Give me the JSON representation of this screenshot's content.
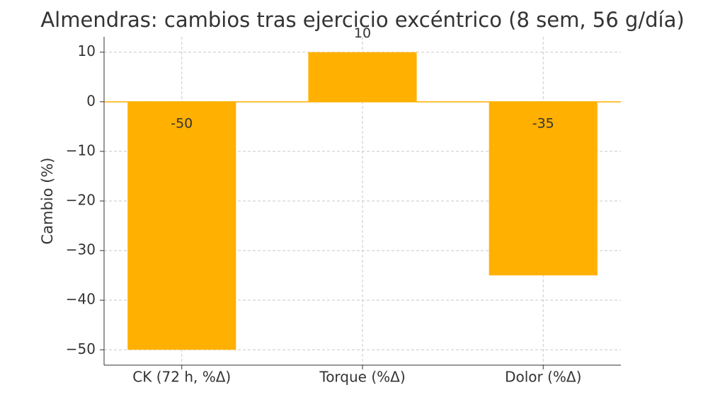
{
  "chart_data": {
    "type": "bar",
    "title": "Almendras: cambios tras ejercicio excéntrico (8 sem, 56 g/día)",
    "y_label": "Cambio (%)",
    "categories": [
      "CK (72 h, %Δ)",
      "Torque (%Δ)",
      "Dolor (%Δ)"
    ],
    "values": [
      -50,
      10,
      -35
    ],
    "color": "#ffb000",
    "ylim": [
      -53.1,
      13.1
    ],
    "yticks": [
      10,
      0,
      {
        "value": -10,
        "label": "−10"
      },
      {
        "value": -20,
        "label": "−20"
      },
      {
        "value": -30,
        "label": "−30"
      },
      {
        "value": -40,
        "label": "−40"
      },
      {
        "value": -50,
        "label": "−50"
      }
    ],
    "grid": true
  }
}
